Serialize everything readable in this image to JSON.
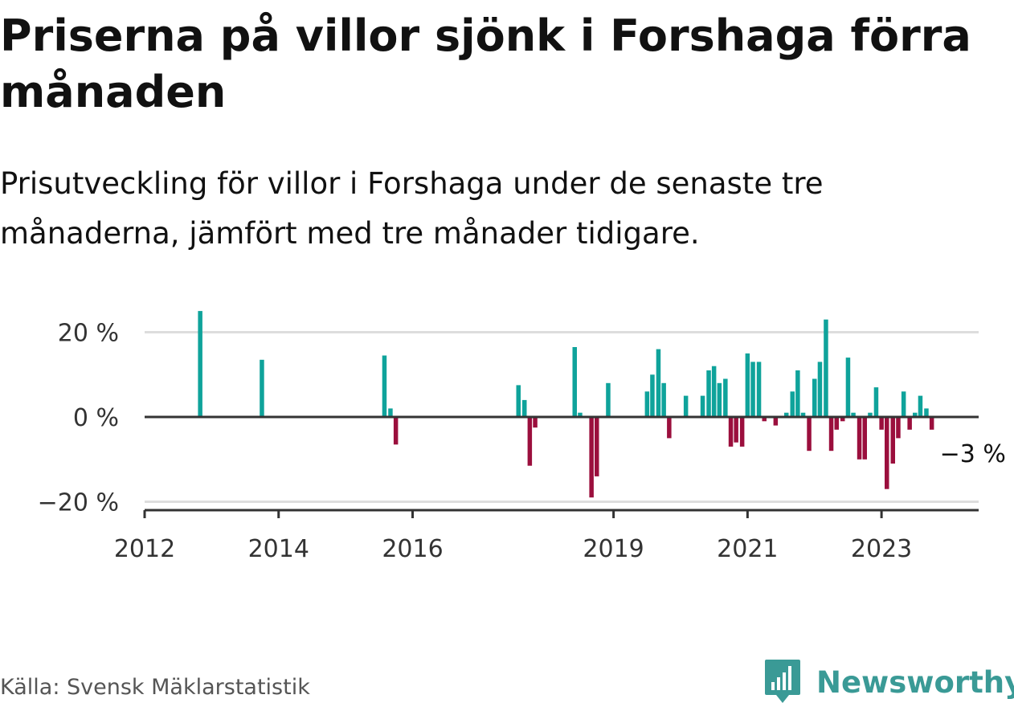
{
  "header": {
    "title": "Priserna på villor sjönk i Forshaga förra månaden",
    "subtitle": "Prisutveckling för villor i Forshaga under de senaste tre månaderna, jämfört med tre månader tidigare."
  },
  "footer": {
    "source": "Källa: Svensk Mäklarstatistik",
    "brand": "Newsworthy"
  },
  "colors": {
    "positive": "#0fa39b",
    "negative": "#9b0f3d",
    "axis": "#333333",
    "grid": "#dddddd",
    "brand": "#3a9a96"
  },
  "icons": {
    "brand_logo": "newsworthy-logo-icon"
  },
  "chart_data": {
    "type": "bar",
    "ylim": [
      -22,
      27
    ],
    "grid": true,
    "y_ticks": [
      {
        "value": 20,
        "label": "20 %"
      },
      {
        "value": 0,
        "label": "0 %"
      },
      {
        "value": -20,
        "label": "−20 %"
      }
    ],
    "x_ticks": [
      {
        "value": 2012.0,
        "label": "2012"
      },
      {
        "value": 2014.0,
        "label": "2014"
      },
      {
        "value": 2016.0,
        "label": "2016"
      },
      {
        "value": 2019.0,
        "label": "2019"
      },
      {
        "value": 2021.0,
        "label": "2021"
      },
      {
        "value": 2023.0,
        "label": "2023"
      }
    ],
    "xlim": [
      2012.0,
      2024.45
    ],
    "annotation": {
      "x": 2023.75,
      "value": -3,
      "label": "−3 %"
    },
    "x": [
      2012.83,
      2013.75,
      2015.58,
      2015.67,
      2015.75,
      2017.58,
      2017.67,
      2017.75,
      2017.83,
      2018.42,
      2018.5,
      2018.67,
      2018.75,
      2018.92,
      2019.5,
      2019.58,
      2019.67,
      2019.75,
      2019.83,
      2020.08,
      2020.33,
      2020.42,
      2020.5,
      2020.58,
      2020.67,
      2020.75,
      2020.83,
      2020.92,
      2021.0,
      2021.08,
      2021.17,
      2021.25,
      2021.42,
      2021.58,
      2021.67,
      2021.75,
      2021.83,
      2021.92,
      2022.0,
      2022.08,
      2022.17,
      2022.25,
      2022.33,
      2022.42,
      2022.5,
      2022.58,
      2022.67,
      2022.75,
      2022.83,
      2022.92,
      2023.0,
      2023.08,
      2023.17,
      2023.25,
      2023.33,
      2023.42,
      2023.5,
      2023.58,
      2023.67,
      2023.75
    ],
    "values": [
      25,
      13.5,
      14.5,
      2,
      -6.5,
      7.5,
      4,
      -11.5,
      -2.5,
      16.5,
      1,
      -19,
      -14,
      8,
      6,
      10,
      16,
      8,
      -5,
      5,
      5,
      11,
      12,
      8,
      9,
      -7,
      -6,
      -7,
      15,
      13,
      13,
      -1,
      -2,
      1,
      6,
      11,
      1,
      -8,
      9,
      13,
      23,
      -8,
      -3,
      -1,
      14,
      1,
      -10,
      -10,
      1,
      7,
      -3,
      -17,
      -11,
      -5,
      6,
      -3,
      1,
      5,
      2,
      -3
    ]
  }
}
